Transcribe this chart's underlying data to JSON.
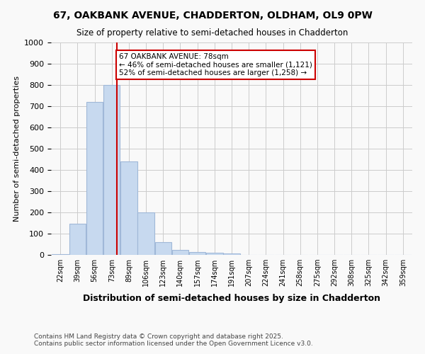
{
  "title1": "67, OAKBANK AVENUE, CHADDERTON, OLDHAM, OL9 0PW",
  "title2": "Size of property relative to semi-detached houses in Chadderton",
  "xlabel": "Distribution of semi-detached houses by size in Chadderton",
  "ylabel": "Number of semi-detached properties",
  "bar_labels": [
    "22sqm",
    "39sqm",
    "56sqm",
    "73sqm",
    "89sqm",
    "106sqm",
    "123sqm",
    "140sqm",
    "157sqm",
    "174sqm",
    "191sqm",
    "207sqm",
    "224sqm",
    "241sqm",
    "258sqm",
    "275sqm",
    "292sqm",
    "308sqm",
    "325sqm",
    "342sqm",
    "359sqm"
  ],
  "bar_values": [
    5,
    148,
    720,
    800,
    440,
    200,
    60,
    25,
    15,
    10,
    7,
    0,
    0,
    0,
    0,
    0,
    0,
    0,
    0,
    0,
    0
  ],
  "bar_color": "#c7d9ef",
  "bar_edge_color": "#a0b8d8",
  "property_sqm": 78,
  "property_label": "67 OAKBANK AVENUE: 78sqm",
  "pct_smaller": 46,
  "n_smaller": 1121,
  "pct_larger": 52,
  "n_larger": 1258,
  "redline_x": 78,
  "ylim": [
    0,
    1000
  ],
  "yticks": [
    0,
    100,
    200,
    300,
    400,
    500,
    600,
    700,
    800,
    900,
    1000
  ],
  "footnote": "Contains HM Land Registry data © Crown copyright and database right 2025.\nContains public sector information licensed under the Open Government Licence v3.0.",
  "background_color": "#f9f9f9",
  "grid_color": "#cccccc",
  "annotation_box_color": "#ffffff",
  "annotation_box_edge": "#cc0000",
  "redline_color": "#cc0000"
}
